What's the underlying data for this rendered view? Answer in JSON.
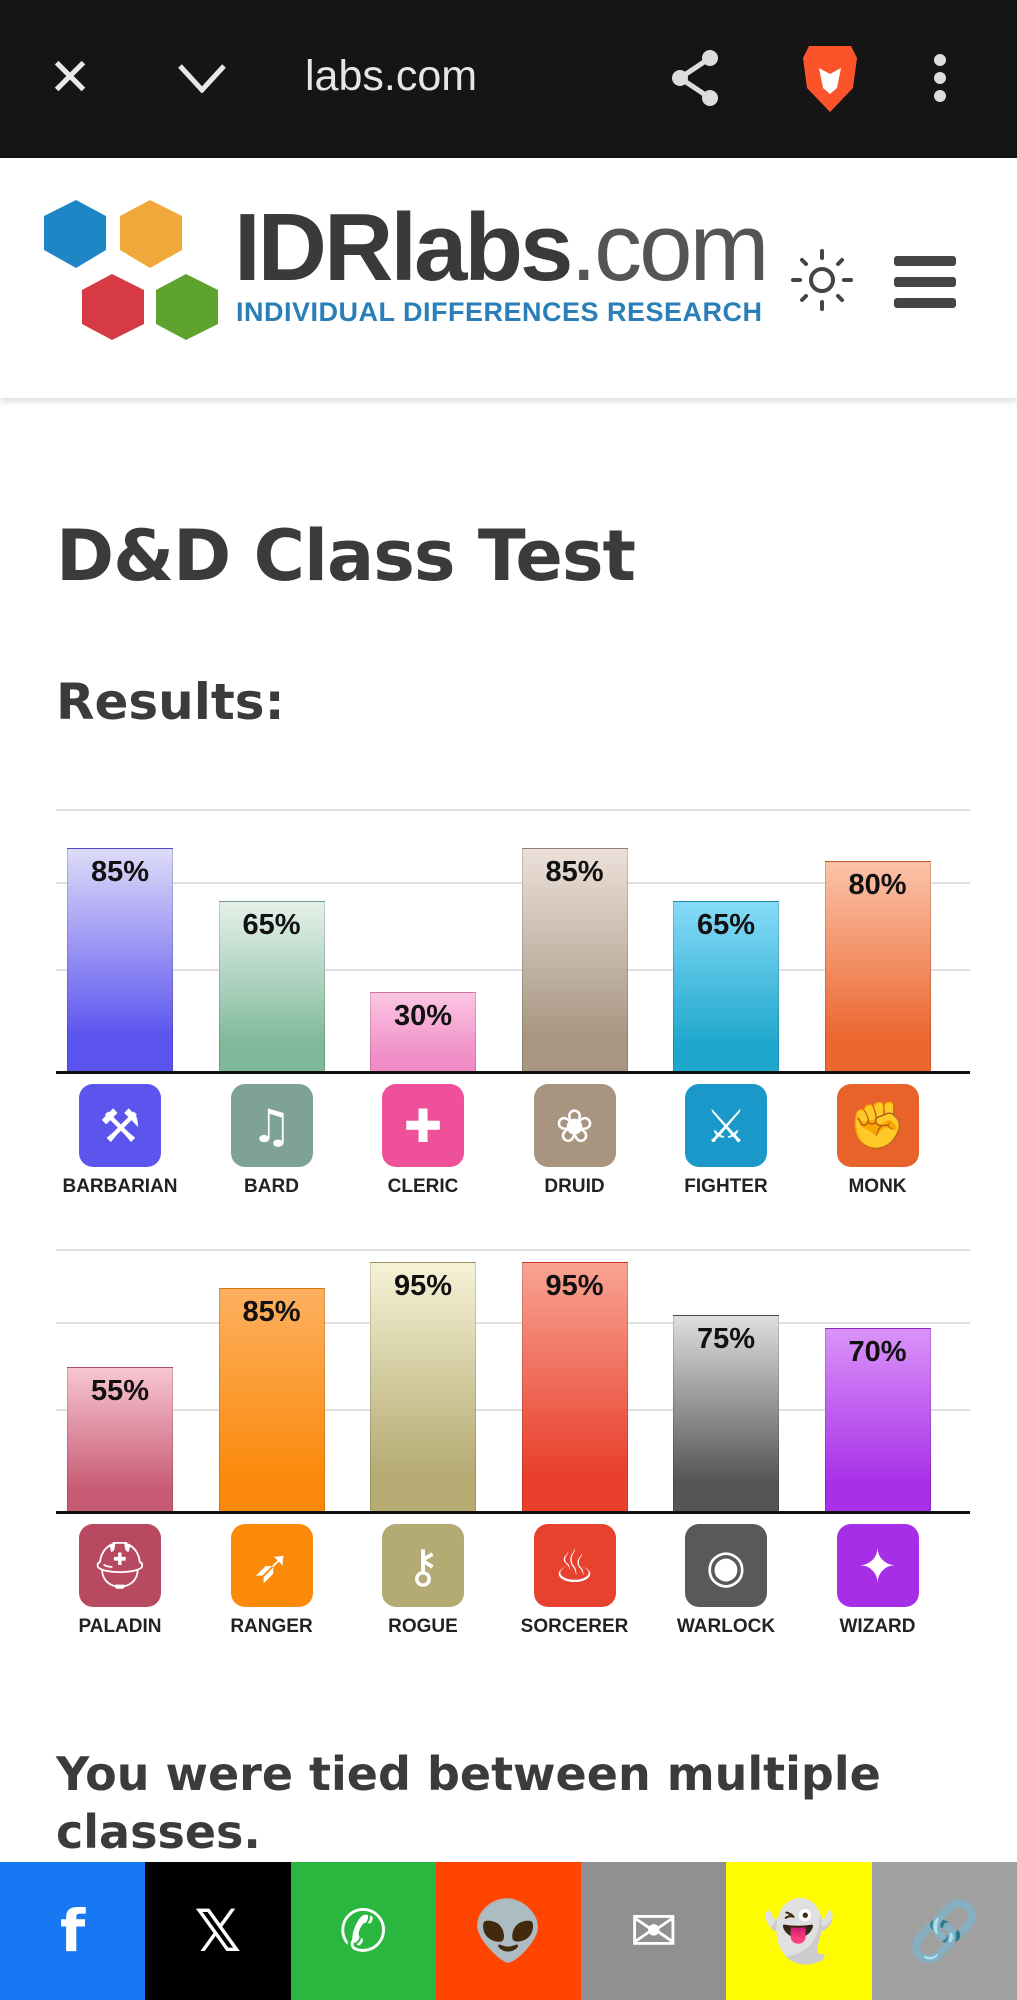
{
  "browser": {
    "url": "labs.com",
    "icons": [
      "close-icon",
      "chevron-down-icon",
      "share-icon",
      "brave-lion-icon",
      "more-vert-icon"
    ]
  },
  "site": {
    "logo_text": "IDRlabs.com",
    "logo_tagline": "INDIVIDUAL DIFFERENCES RESEARCH",
    "icons": [
      "sun-icon",
      "hamburger-menu-icon"
    ]
  },
  "page": {
    "title": "D&D Class Test",
    "results_heading": "Results:",
    "tied_text": "You were tied between multiple classes."
  },
  "chart_data": [
    {
      "type": "bar",
      "ylim": [
        0,
        100
      ],
      "grid": true,
      "categories": [
        "BARBARIAN",
        "BARD",
        "CLERIC",
        "DRUID",
        "FIGHTER",
        "MONK"
      ],
      "values": [
        85,
        65,
        30,
        85,
        65,
        80
      ],
      "labels": [
        "85%",
        "65%",
        "30%",
        "85%",
        "65%",
        "80%"
      ],
      "colors": [
        "#5b54ee",
        "#7fb89a",
        "#f08cc6",
        "#a89682",
        "#1ea6cc",
        "#ec6630"
      ],
      "top_colors": [
        "#dedbf8",
        "#e5f1ea",
        "#fbc6e3",
        "#ebe0d9",
        "#86dbf8",
        "#fbc3a8"
      ],
      "icon_colors": [
        "#5b55ee",
        "#7ea396",
        "#ee5199",
        "#a89580",
        "#1a98c9",
        "#e8632a"
      ],
      "icons": [
        "double-axe-icon",
        "lyre-icon",
        "holy-cross-icon",
        "paw-icon",
        "crossed-swords-icon",
        "fist-icon"
      ],
      "icon_glyphs": [
        "⚒",
        "♫",
        "✚",
        "❀",
        "⚔",
        "✊"
      ]
    },
    {
      "type": "bar",
      "ylim": [
        0,
        100
      ],
      "grid": true,
      "categories": [
        "PALADIN",
        "RANGER",
        "ROGUE",
        "SORCERER",
        "WARLOCK",
        "WIZARD"
      ],
      "values": [
        55,
        85,
        95,
        95,
        75,
        70
      ],
      "labels": [
        "55%",
        "85%",
        "95%",
        "95%",
        "75%",
        "70%"
      ],
      "colors": [
        "#c75b73",
        "#fb8a0c",
        "#b5ab73",
        "#e8402c",
        "#555555",
        "#a730e8"
      ],
      "top_colors": [
        "#f8c6d3",
        "#fdb060",
        "#f6f2d6",
        "#f9a393",
        "#dedede",
        "#da93f8"
      ],
      "icon_colors": [
        "#b74960",
        "#fc8a0a",
        "#b3ab73",
        "#e74130",
        "#595959",
        "#a62ee7"
      ],
      "icons": [
        "helmet-icon",
        "bow-icon",
        "key-dagger-icon",
        "flame-icon",
        "eye-icon",
        "spellbook-icon"
      ],
      "icon_glyphs": [
        "⛑",
        "➶",
        "⚷",
        "♨",
        "◉",
        "✦"
      ]
    }
  ],
  "share_bar": [
    {
      "name": "facebook",
      "glyph": "f",
      "bg": "#1877f2",
      "fg": "#ffffff"
    },
    {
      "name": "x",
      "glyph": "𝕏",
      "bg": "#000000",
      "fg": "#ffffff"
    },
    {
      "name": "whatsapp",
      "glyph": "✆",
      "bg": "#2ab740",
      "fg": "#ffffff"
    },
    {
      "name": "reddit",
      "glyph": "👽",
      "bg": "#ff4500",
      "fg": "#ffffff"
    },
    {
      "name": "email",
      "glyph": "✉",
      "bg": "#909090",
      "fg": "#ffffff"
    },
    {
      "name": "snapchat",
      "glyph": "👻",
      "bg": "#fffc00",
      "fg": "#222222"
    },
    {
      "name": "copy-link",
      "glyph": "🔗",
      "bg": "#a0a0a0",
      "fg": "#ffffff"
    }
  ]
}
